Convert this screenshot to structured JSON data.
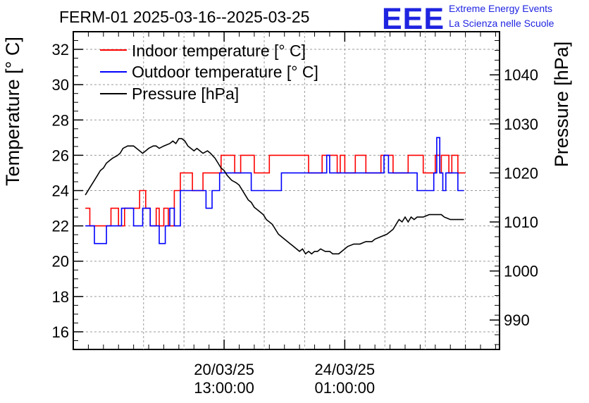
{
  "chart_data": {
    "type": "line",
    "title": "FERM-01 2025-03-16--2025-03-25",
    "logo": {
      "mark": "EEE",
      "line1": "Extreme Energy Events",
      "line2": "La Scienza nelle Scuole"
    },
    "y_left": {
      "label": "Temperature [° C]",
      "range": [
        15,
        33
      ],
      "ticks": [
        16,
        18,
        20,
        22,
        24,
        26,
        28,
        30,
        32
      ]
    },
    "y_right": {
      "label": "Pressure [hPa]",
      "range": [
        984.0,
        1048.8
      ],
      "ticks": [
        990,
        1000,
        1010,
        1020,
        1030,
        1040
      ]
    },
    "x": {
      "label": "",
      "range_days": [
        0,
        14.13
      ],
      "major_ticks": [
        {
          "day": 5.0,
          "label_line1": "20/03/25",
          "label_line2": "13:00:00"
        },
        {
          "day": 9.0,
          "label_line1": "24/03/25",
          "label_line2": "01:00:00"
        }
      ],
      "minor_ticks": [
        0.5,
        1.0,
        1.5,
        2.0,
        2.5,
        3.0,
        3.5,
        4.0,
        4.5,
        5.5,
        6.0,
        6.5,
        7.0,
        7.5,
        8.0,
        8.5,
        9.5,
        10.0,
        10.5,
        11.0,
        11.5,
        12.0,
        12.5,
        13.0,
        13.5,
        14.0
      ],
      "grid_days": [
        2.33,
        3.67,
        5.0,
        6.33,
        7.67,
        9.0,
        10.33,
        11.67,
        13.0
      ]
    },
    "grid": true,
    "legend_position": "top-left",
    "series": [
      {
        "name": "Indoor temperature [° C]",
        "color": "#ff0000",
        "axis": "left",
        "points": [
          [
            0.4,
            23
          ],
          [
            0.55,
            23
          ],
          [
            0.55,
            22
          ],
          [
            1.25,
            22
          ],
          [
            1.25,
            23
          ],
          [
            1.5,
            23
          ],
          [
            1.5,
            22
          ],
          [
            1.7,
            22
          ],
          [
            1.7,
            23
          ],
          [
            2.2,
            23
          ],
          [
            2.2,
            24
          ],
          [
            2.4,
            24
          ],
          [
            2.4,
            23
          ],
          [
            2.55,
            23
          ],
          [
            2.55,
            22
          ],
          [
            2.75,
            22
          ],
          [
            2.75,
            23
          ],
          [
            2.85,
            23
          ],
          [
            2.85,
            22
          ],
          [
            3.0,
            22
          ],
          [
            3.0,
            23
          ],
          [
            3.15,
            23
          ],
          [
            3.15,
            22
          ],
          [
            3.35,
            22
          ],
          [
            3.35,
            24
          ],
          [
            3.55,
            24
          ],
          [
            3.55,
            25
          ],
          [
            3.95,
            25
          ],
          [
            3.95,
            24
          ],
          [
            4.3,
            24
          ],
          [
            4.3,
            25
          ],
          [
            4.9,
            25
          ],
          [
            4.9,
            26
          ],
          [
            5.35,
            26
          ],
          [
            5.35,
            25
          ],
          [
            5.55,
            25
          ],
          [
            5.55,
            26
          ],
          [
            6.0,
            26
          ],
          [
            6.0,
            25
          ],
          [
            6.5,
            25
          ],
          [
            6.5,
            26
          ],
          [
            7.8,
            26
          ],
          [
            7.8,
            25
          ],
          [
            8.25,
            25
          ],
          [
            8.25,
            26
          ],
          [
            8.75,
            26
          ],
          [
            8.75,
            25
          ],
          [
            8.85,
            25
          ],
          [
            8.85,
            26
          ],
          [
            9.0,
            26
          ],
          [
            9.0,
            25
          ],
          [
            9.35,
            25
          ],
          [
            9.35,
            26
          ],
          [
            9.7,
            26
          ],
          [
            9.7,
            25
          ],
          [
            10.2,
            25
          ],
          [
            10.2,
            26
          ],
          [
            10.6,
            26
          ],
          [
            10.6,
            25
          ],
          [
            11.1,
            25
          ],
          [
            11.1,
            26
          ],
          [
            11.6,
            26
          ],
          [
            11.6,
            25
          ],
          [
            12.0,
            25
          ],
          [
            12.0,
            26
          ],
          [
            12.15,
            26
          ],
          [
            12.15,
            25
          ],
          [
            12.2,
            25
          ],
          [
            12.2,
            26
          ],
          [
            12.45,
            26
          ],
          [
            12.45,
            25
          ],
          [
            12.55,
            25
          ],
          [
            12.55,
            26
          ],
          [
            12.75,
            26
          ],
          [
            12.75,
            25
          ],
          [
            13.0,
            25
          ]
        ]
      },
      {
        "name": "Outdoor temperature [° C]",
        "color": "#0000ff",
        "axis": "left",
        "points": [
          [
            0.4,
            22
          ],
          [
            0.7,
            22
          ],
          [
            0.7,
            21
          ],
          [
            1.1,
            21
          ],
          [
            1.1,
            22
          ],
          [
            1.6,
            22
          ],
          [
            1.6,
            23
          ],
          [
            2.0,
            23
          ],
          [
            2.0,
            22
          ],
          [
            2.3,
            22
          ],
          [
            2.3,
            23
          ],
          [
            2.55,
            23
          ],
          [
            2.55,
            22
          ],
          [
            2.85,
            22
          ],
          [
            2.85,
            21
          ],
          [
            3.05,
            21
          ],
          [
            3.05,
            22
          ],
          [
            3.2,
            22
          ],
          [
            3.2,
            23
          ],
          [
            3.35,
            23
          ],
          [
            3.35,
            22
          ],
          [
            3.55,
            22
          ],
          [
            3.55,
            24
          ],
          [
            4.4,
            24
          ],
          [
            4.4,
            23
          ],
          [
            4.6,
            23
          ],
          [
            4.6,
            24
          ],
          [
            4.85,
            24
          ],
          [
            4.85,
            25
          ],
          [
            5.9,
            25
          ],
          [
            5.9,
            24
          ],
          [
            6.9,
            24
          ],
          [
            6.9,
            25
          ],
          [
            8.4,
            25
          ],
          [
            8.4,
            26
          ],
          [
            8.5,
            26
          ],
          [
            8.5,
            25
          ],
          [
            10.3,
            25
          ],
          [
            10.3,
            26
          ],
          [
            10.45,
            26
          ],
          [
            10.45,
            25
          ],
          [
            11.4,
            25
          ],
          [
            11.4,
            24
          ],
          [
            11.95,
            24
          ],
          [
            11.95,
            25
          ],
          [
            12.05,
            25
          ],
          [
            12.05,
            27
          ],
          [
            12.15,
            27
          ],
          [
            12.15,
            25
          ],
          [
            12.25,
            25
          ],
          [
            12.25,
            24
          ],
          [
            12.35,
            24
          ],
          [
            12.35,
            25
          ],
          [
            12.75,
            25
          ],
          [
            12.75,
            24
          ],
          [
            12.95,
            24
          ]
        ]
      },
      {
        "name": "Pressure [hPa]",
        "color": "#000000",
        "axis": "right",
        "points": [
          [
            0.4,
            1015.5
          ],
          [
            0.5,
            1016.5
          ],
          [
            0.6,
            1017.5
          ],
          [
            0.7,
            1018.5
          ],
          [
            0.8,
            1019.5
          ],
          [
            0.9,
            1020.5
          ],
          [
            1.0,
            1021
          ],
          [
            1.1,
            1022
          ],
          [
            1.2,
            1022.5
          ],
          [
            1.3,
            1023
          ],
          [
            1.45,
            1023.5
          ],
          [
            1.55,
            1024
          ],
          [
            1.65,
            1025
          ],
          [
            1.8,
            1025.5
          ],
          [
            2.0,
            1025.5
          ],
          [
            2.1,
            1025
          ],
          [
            2.2,
            1024.5
          ],
          [
            2.3,
            1024
          ],
          [
            2.4,
            1024.5
          ],
          [
            2.5,
            1025
          ],
          [
            2.65,
            1025.5
          ],
          [
            2.75,
            1025.5
          ],
          [
            2.85,
            1025
          ],
          [
            3.0,
            1025.5
          ],
          [
            3.2,
            1026
          ],
          [
            3.3,
            1026.5
          ],
          [
            3.4,
            1026
          ],
          [
            3.5,
            1027
          ],
          [
            3.6,
            1027
          ],
          [
            3.7,
            1026.5
          ],
          [
            3.8,
            1025.5
          ],
          [
            3.9,
            1025
          ],
          [
            4.0,
            1024.5
          ],
          [
            4.1,
            1025
          ],
          [
            4.2,
            1024.5
          ],
          [
            4.3,
            1024
          ],
          [
            4.45,
            1024.5
          ],
          [
            4.55,
            1024
          ],
          [
            4.7,
            1023
          ],
          [
            4.8,
            1022
          ],
          [
            4.9,
            1021
          ],
          [
            5.0,
            1020.5
          ],
          [
            5.1,
            1019.5
          ],
          [
            5.25,
            1018.5
          ],
          [
            5.4,
            1018
          ],
          [
            5.5,
            1017.5
          ],
          [
            5.6,
            1016.5
          ],
          [
            5.7,
            1015.5
          ],
          [
            5.8,
            1014.5
          ],
          [
            5.9,
            1014
          ],
          [
            6.0,
            1013
          ],
          [
            6.1,
            1012.5
          ],
          [
            6.2,
            1012
          ],
          [
            6.3,
            1011.5
          ],
          [
            6.4,
            1010.5
          ],
          [
            6.5,
            1010
          ],
          [
            6.6,
            1009.5
          ],
          [
            6.7,
            1008.5
          ],
          [
            6.8,
            1007.5
          ],
          [
            6.9,
            1007
          ],
          [
            7.0,
            1006.5
          ],
          [
            7.1,
            1006
          ],
          [
            7.2,
            1005.5
          ],
          [
            7.3,
            1005
          ],
          [
            7.4,
            1004.5
          ],
          [
            7.5,
            1004
          ],
          [
            7.6,
            1004.5
          ],
          [
            7.7,
            1003.5
          ],
          [
            7.8,
            1004
          ],
          [
            7.9,
            1003.5
          ],
          [
            8.0,
            1004
          ],
          [
            8.1,
            1004
          ],
          [
            8.2,
            1004.5
          ],
          [
            8.35,
            1004
          ],
          [
            8.5,
            1004
          ],
          [
            8.6,
            1003.5
          ],
          [
            8.8,
            1003.5
          ],
          [
            8.9,
            1004
          ],
          [
            9.0,
            1004.5
          ],
          [
            9.1,
            1005
          ],
          [
            9.3,
            1005.5
          ],
          [
            9.5,
            1005.5
          ],
          [
            9.7,
            1006
          ],
          [
            9.9,
            1006
          ],
          [
            10.0,
            1006.5
          ],
          [
            10.2,
            1007
          ],
          [
            10.4,
            1007.5
          ],
          [
            10.6,
            1008.5
          ],
          [
            10.7,
            1009.5
          ],
          [
            10.8,
            1010.5
          ],
          [
            10.9,
            1010
          ],
          [
            11.0,
            1011
          ],
          [
            11.1,
            1010
          ],
          [
            11.2,
            1011
          ],
          [
            11.3,
            1010.5
          ],
          [
            11.4,
            1011
          ],
          [
            11.6,
            1011
          ],
          [
            11.8,
            1011.5
          ],
          [
            12.0,
            1011.5
          ],
          [
            12.2,
            1011.5
          ],
          [
            12.3,
            1011
          ],
          [
            12.5,
            1010.5
          ],
          [
            12.7,
            1010.5
          ],
          [
            12.95,
            1010.5
          ]
        ]
      }
    ]
  }
}
